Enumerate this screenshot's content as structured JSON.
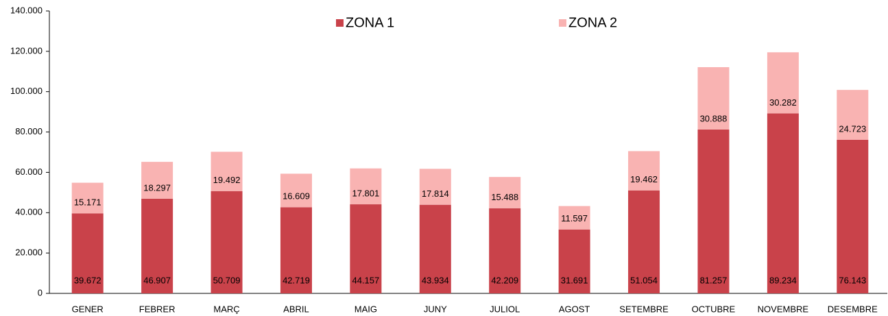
{
  "chart_data": {
    "type": "stacked_bar",
    "categories": [
      "GENER",
      "FEBRER",
      "MARÇ",
      "ABRIL",
      "MAIG",
      "JUNY",
      "JULIOL",
      "AGOST",
      "SETEMBRE",
      "OCTUBRE",
      "NOVEMBRE",
      "DESEMBRE"
    ],
    "series": [
      {
        "name": "ZONA 1",
        "color": "#c9424a",
        "values": [
          39672,
          46907,
          50709,
          42719,
          44157,
          43934,
          42209,
          31691,
          51054,
          81257,
          89234,
          76143
        ],
        "value_labels": [
          "39.672",
          "46.907",
          "50.709",
          "42.719",
          "44.157",
          "43.934",
          "42.209",
          "31.691",
          "51.054",
          "81.257",
          "89.234",
          "76.143"
        ]
      },
      {
        "name": "ZONA 2",
        "color": "#f9b3b2",
        "values": [
          15171,
          18297,
          19492,
          16609,
          17801,
          17814,
          15488,
          11597,
          19462,
          30888,
          30282,
          24723
        ],
        "value_labels": [
          "15.171",
          "18.297",
          "19.492",
          "16.609",
          "17.801",
          "17.814",
          "15.488",
          "11.597",
          "19.462",
          "30.888",
          "30.282",
          "24.723"
        ]
      }
    ],
    "ylim": [
      0,
      140000
    ],
    "yticks": [
      0,
      {
        "value": 20000,
        "label": "20.000"
      },
      {
        "value": 40000,
        "label": "40.000"
      },
      {
        "value": 60000,
        "label": "60.000"
      },
      {
        "value": 80000,
        "label": "80.000"
      },
      {
        "value": 100000,
        "label": "100.000"
      },
      {
        "value": 120000,
        "label": "120.000"
      },
      {
        "value": 140000,
        "label": "140.000"
      }
    ],
    "legend": "top"
  }
}
